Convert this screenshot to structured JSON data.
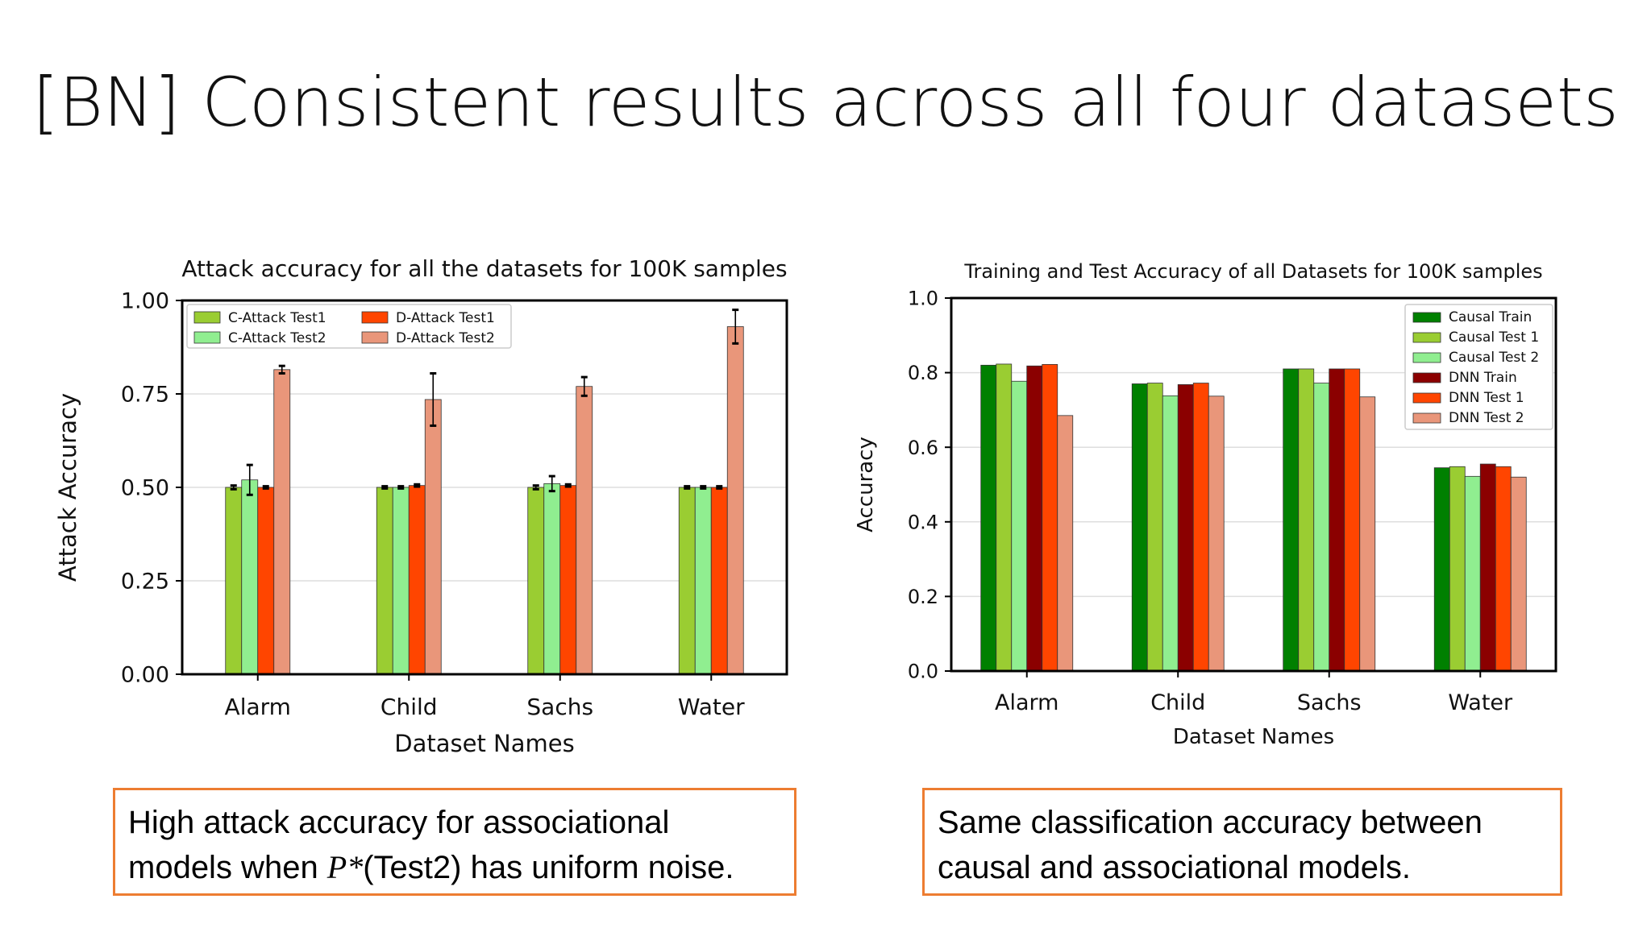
{
  "slide": {
    "title": "[BN] Consistent results across all four datasets",
    "caption_left_part1": "High attack accuracy for associational models when ",
    "caption_left_pstar": "P*",
    "caption_left_part2": "(Test2) has uniform noise.",
    "caption_right": "Same classification accuracy between causal and associational models.",
    "caption_border_color": "#ed7d31"
  },
  "chart_data": [
    {
      "type": "bar",
      "title": "Attack accuracy for all the datasets for 100K samples",
      "xlabel": "Dataset Names",
      "ylabel": "Attack Accuracy",
      "categories": [
        "Alarm",
        "Child",
        "Sachs",
        "Water"
      ],
      "ylim": [
        0,
        1.0
      ],
      "yticks": [
        "0.00",
        "0.25",
        "0.50",
        "0.75",
        "1.00"
      ],
      "legend_position": "top-left",
      "grid": true,
      "series": [
        {
          "name": "C-Attack Test1",
          "color": "#9acd32",
          "values": [
            0.5,
            0.5,
            0.5,
            0.5
          ],
          "err": [
            0.005,
            0.003,
            0.005,
            0.003
          ]
        },
        {
          "name": "C-Attack Test2",
          "color": "#90ee90",
          "values": [
            0.52,
            0.5,
            0.51,
            0.5
          ],
          "err": [
            0.04,
            0.003,
            0.02,
            0.003
          ]
        },
        {
          "name": "D-Attack Test1",
          "color": "#ff4500",
          "values": [
            0.5,
            0.505,
            0.505,
            0.5
          ],
          "err": [
            0.003,
            0.003,
            0.003,
            0.003
          ]
        },
        {
          "name": "D-Attack Test2",
          "color": "#e9967a",
          "values": [
            0.815,
            0.735,
            0.77,
            0.93
          ],
          "err": [
            0.01,
            0.07,
            0.025,
            0.045
          ]
        }
      ]
    },
    {
      "type": "bar",
      "title": "Training and Test Accuracy of all Datasets for 100K samples",
      "xlabel": "Dataset Names",
      "ylabel": "Accuracy",
      "categories": [
        "Alarm",
        "Child",
        "Sachs",
        "Water"
      ],
      "ylim": [
        0,
        1.0
      ],
      "yticks": [
        "0.0",
        "0.2",
        "0.4",
        "0.6",
        "0.8",
        "1.0"
      ],
      "legend_position": "top-right",
      "grid": true,
      "series": [
        {
          "name": "Causal Train",
          "color": "#008000",
          "values": [
            0.82,
            0.77,
            0.81,
            0.545
          ]
        },
        {
          "name": "Causal Test 1",
          "color": "#9acd32",
          "values": [
            0.823,
            0.772,
            0.81,
            0.548
          ]
        },
        {
          "name": "Causal Test 2",
          "color": "#90ee90",
          "values": [
            0.777,
            0.738,
            0.772,
            0.522
          ]
        },
        {
          "name": "DNN Train",
          "color": "#8b0000",
          "values": [
            0.818,
            0.768,
            0.81,
            0.555
          ]
        },
        {
          "name": "DNN Test 1",
          "color": "#ff4500",
          "values": [
            0.822,
            0.772,
            0.81,
            0.548
          ]
        },
        {
          "name": "DNN Test 2",
          "color": "#e9967a",
          "values": [
            0.685,
            0.737,
            0.735,
            0.52
          ]
        }
      ]
    }
  ]
}
